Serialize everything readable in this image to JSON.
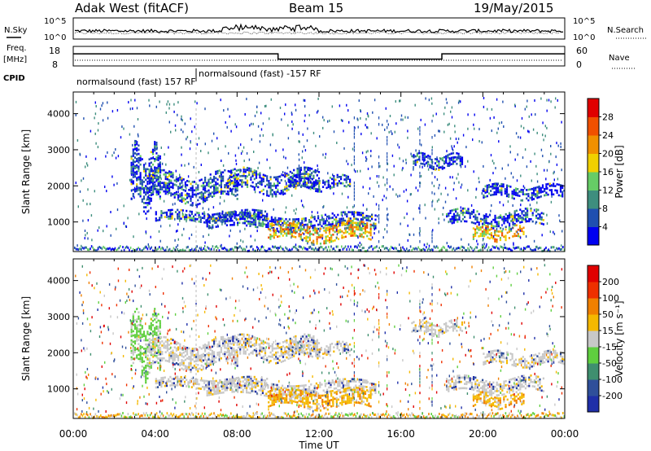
{
  "header": {
    "station": "Adak West (fitACF)",
    "beam": "Beam 15",
    "date": "19/May/2015"
  },
  "chart_data": [
    {
      "type": "line",
      "panel": "noise",
      "left_label": "N.Sky",
      "right_label": "N.Search",
      "left_ticks": [
        "10^5",
        "10^0"
      ],
      "right_ticks": [
        "10^5",
        "10^0"
      ]
    },
    {
      "type": "line",
      "panel": "frequency",
      "left_label_line1": "Freq.",
      "left_label_line2": "[MHz]",
      "right_label": "Nave",
      "left_ticks": [
        "18",
        "8"
      ],
      "right_ticks": [
        "60",
        "0"
      ],
      "cpid_label": "CPID",
      "cpid_segments": [
        {
          "start_hour": 0,
          "end_hour": 6,
          "label": "normalsound (fast) 157 RF"
        },
        {
          "start_hour": 6,
          "end_hour": 24,
          "label": "normalsound (fast) -157 RF"
        }
      ],
      "freq_steps": [
        {
          "start_hour": 0,
          "end_hour": 10,
          "level": 0.62
        },
        {
          "start_hour": 10,
          "end_hour": 18,
          "level": 0.35
        },
        {
          "start_hour": 18,
          "end_hour": 24,
          "level": 0.62
        }
      ]
    },
    {
      "type": "heatmap",
      "panel": "power",
      "ylabel": "Slant Range [km]",
      "ylim": [
        180,
        4600
      ],
      "yticks": [
        1000,
        2000,
        3000,
        4000
      ],
      "colorbar_label": "Power [dB]",
      "colorbar_ticks": [
        "4",
        "8",
        "12",
        "16",
        "20",
        "24",
        "28"
      ],
      "colors": [
        "#0000f0",
        "#1f4fb0",
        "#3e8e7e",
        "#66cc66",
        "#f0d000",
        "#f09000",
        "#f05000",
        "#e00000"
      ]
    },
    {
      "type": "heatmap",
      "panel": "velocity",
      "ylabel": "Slant Range [km]",
      "xlabel": "Time UT",
      "ylim": [
        180,
        4600
      ],
      "yticks": [
        1000,
        2000,
        3000,
        4000
      ],
      "xticks": [
        "00:00",
        "04:00",
        "08:00",
        "12:00",
        "16:00",
        "20:00",
        "00:00"
      ],
      "colorbar_label": "Velocity [m s⁻¹]",
      "colorbar_ticks": [
        "200",
        "100",
        "50",
        "15",
        "-15",
        "-50",
        "-100",
        "-200"
      ],
      "colors": [
        "#1f2fa8",
        "#2f4f9a",
        "#3f8f6f",
        "#5fcf3f",
        "#c8c8c8",
        "#f5b800",
        "#f08000",
        "#ee3000",
        "#e00000"
      ]
    }
  ]
}
